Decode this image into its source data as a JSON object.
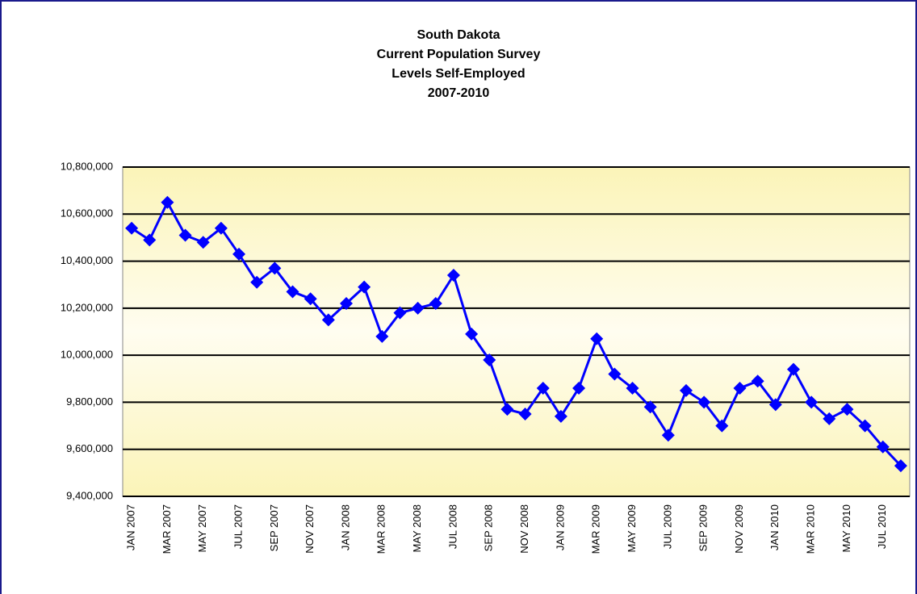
{
  "chart_data": {
    "type": "line",
    "title": [
      "South Dakota",
      "Current Population Survey",
      "Levels Self-Employed",
      "2007-2010"
    ],
    "categories": [
      "JAN 2007",
      null,
      "MAR 2007",
      null,
      "MAY 2007",
      null,
      "JUL 2007",
      null,
      "SEP 2007",
      null,
      "NOV 2007",
      null,
      "JAN 2008",
      null,
      "MAR 2008",
      null,
      "MAY 2008",
      null,
      "JUL 2008",
      null,
      "SEP 2008",
      null,
      "NOV 2008",
      null,
      "JAN 2009",
      null,
      "MAR 2009",
      null,
      "MAY 2009",
      null,
      "JUL 2009",
      null,
      "SEP 2009",
      null,
      "NOV 2009",
      null,
      "JAN 2010",
      null,
      "MAR 2010",
      null,
      "MAY 2010",
      null,
      "JUL 2010",
      null
    ],
    "series": [
      {
        "name": "Self-Employed",
        "color": "#0000ff",
        "values": [
          10540000,
          10490000,
          10650000,
          10510000,
          10480000,
          10540000,
          10430000,
          10310000,
          10370000,
          10270000,
          10240000,
          10150000,
          10220000,
          10290000,
          10080000,
          10180000,
          10200000,
          10220000,
          10340000,
          10090000,
          9980000,
          9770000,
          9750000,
          9860000,
          9740000,
          9860000,
          10070000,
          9920000,
          9860000,
          9780000,
          9660000,
          9850000,
          9800000,
          9700000,
          9860000,
          9890000,
          9790000,
          9940000,
          9800000,
          9730000,
          9770000,
          9700000,
          9610000,
          9530000
        ]
      }
    ],
    "ylim": [
      9400000,
      10800000
    ],
    "yticks": [
      {
        "value": 9400000,
        "label": "9,400,000"
      },
      {
        "value": 9600000,
        "label": "9,600,000"
      },
      {
        "value": 9800000,
        "label": "9,800,000"
      },
      {
        "value": 10000000,
        "label": "10,000,000"
      },
      {
        "value": 10200000,
        "label": "10,200,000"
      },
      {
        "value": 10400000,
        "label": "10,400,000"
      },
      {
        "value": 10600000,
        "label": "10,600,000"
      },
      {
        "value": 10800000,
        "label": "10,800,000"
      }
    ],
    "grid": true
  }
}
